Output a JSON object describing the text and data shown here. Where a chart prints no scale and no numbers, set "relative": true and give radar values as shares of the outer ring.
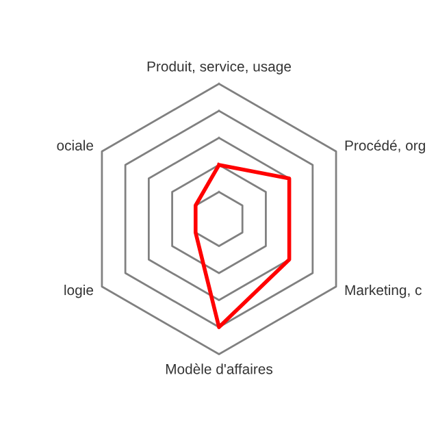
{
  "chart_data": {
    "type": "radar",
    "relative": true,
    "grid": true,
    "categories": [
      "Produit, service, usage",
      "Procédé, org",
      "Marketing, c",
      "Modèle d'affaires",
      "logie",
      "ociale"
    ],
    "series": [
      {
        "color": "#ff0000",
        "values": [
          0.4,
          0.6,
          0.6,
          0.8,
          0.2,
          0.2
        ]
      }
    ]
  }
}
